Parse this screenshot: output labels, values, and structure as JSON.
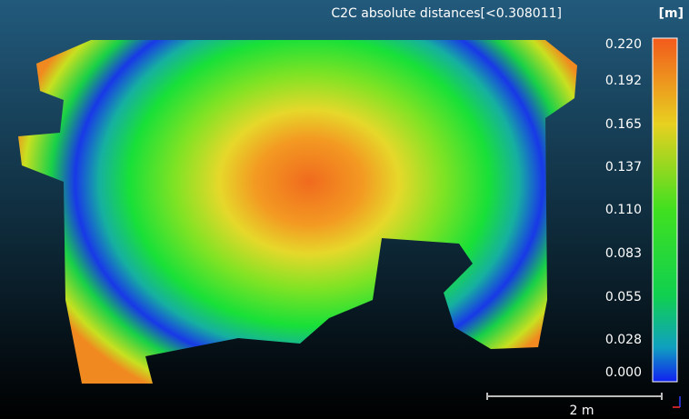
{
  "colorbar": {
    "title": "C2C absolute distances[<0.308011]",
    "unit": "[m]",
    "ticks": [
      "0.220",
      "0.192",
      "0.165",
      "0.137",
      "0.110",
      "0.083",
      "0.055",
      "0.028",
      "0.000"
    ]
  },
  "scale_bar": {
    "label": "2 m"
  }
}
